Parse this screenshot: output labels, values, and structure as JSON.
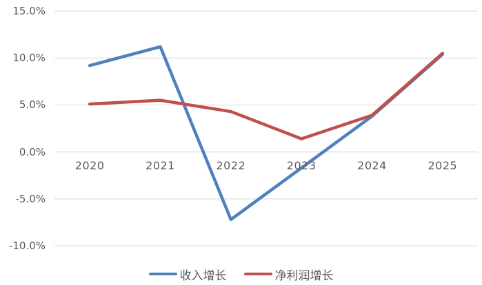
{
  "chart_data": {
    "type": "line",
    "title": "",
    "xlabel": "",
    "ylabel": "",
    "categories": [
      "2020",
      "2021",
      "2022",
      "2023",
      "2024",
      "2025"
    ],
    "series": [
      {
        "name": "收入增长",
        "color": "#4F81BD",
        "values": [
          9.2,
          11.2,
          -7.2,
          -1.7,
          3.8,
          10.4
        ]
      },
      {
        "name": "净利润增长",
        "color": "#C0504D",
        "values": [
          5.1,
          5.5,
          4.3,
          1.4,
          3.9,
          10.5
        ]
      }
    ],
    "ylim": [
      -10,
      15
    ],
    "yticks": [
      15,
      10,
      5,
      0,
      -5,
      -10
    ],
    "ytick_labels": [
      "15.0%",
      "10.0%",
      "5.0%",
      "0.0%",
      "-5.0%",
      "-10.0%"
    ],
    "grid": true,
    "gridline_color": "#D9D9D9",
    "axis_text_color": "#595959",
    "background": "#FFFFFF",
    "legend_position": "bottom"
  },
  "legend": {
    "items": [
      {
        "label": "收入增长",
        "color": "#4F81BD"
      },
      {
        "label": "净利润增长",
        "color": "#C0504D"
      }
    ]
  }
}
